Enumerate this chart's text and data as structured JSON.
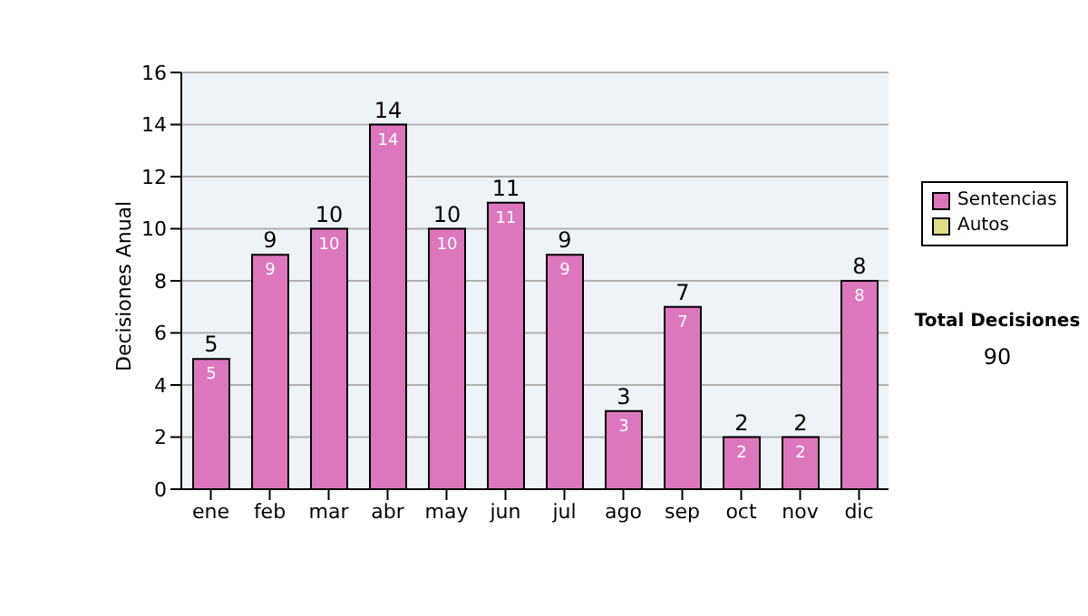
{
  "chart_data": {
    "type": "bar",
    "ylabel": "Decisiones Anual",
    "categories": [
      "ene",
      "feb",
      "mar",
      "abr",
      "may",
      "jun",
      "jul",
      "ago",
      "sep",
      "oct",
      "nov",
      "dic"
    ],
    "series": [
      {
        "name": "Sentencias",
        "color": "#dd77bb",
        "values": [
          5,
          9,
          10,
          14,
          10,
          11,
          9,
          3,
          7,
          2,
          2,
          8
        ],
        "value_labels": [
          "5",
          "9",
          "10",
          "14",
          "10",
          "11",
          "9",
          "3",
          "7",
          "2",
          "2",
          "8"
        ]
      },
      {
        "name": "Autos",
        "color": "#dddd88",
        "values": [
          0,
          0,
          0,
          0,
          0,
          0,
          0,
          0,
          0,
          0,
          0,
          0
        ]
      }
    ],
    "stacked": true,
    "totals": [
      "5",
      "9",
      "10",
      "14",
      "10",
      "11",
      "9",
      "3",
      "7",
      "2",
      "2",
      "8"
    ],
    "ylim": [
      0,
      16
    ],
    "yticks": [
      0,
      2,
      4,
      6,
      8,
      10,
      12,
      14,
      16
    ],
    "grid": "y",
    "legend": "right",
    "annotations": [
      "Total Decisiones",
      "90"
    ]
  }
}
